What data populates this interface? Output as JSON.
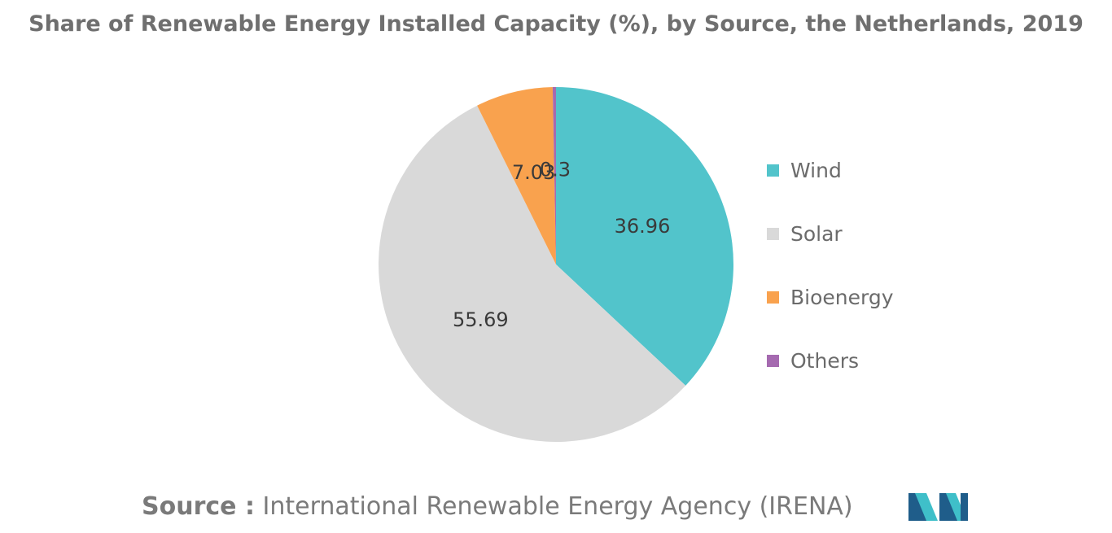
{
  "title": "Share of Renewable Energy Installed Capacity (%), by Source, the Netherlands, 2019",
  "source": {
    "label": "Source :",
    "text": "International Renewable Energy Agency (IRENA)"
  },
  "logo": {
    "icon": "mordor-intelligence-logo-icon",
    "colors": [
      "#1f5d8a",
      "#3fbfc9"
    ]
  },
  "chart_data": {
    "type": "pie",
    "title": "Share of Renewable Energy Installed Capacity (%), by Source, the Netherlands, 2019",
    "slices": [
      {
        "name": "Wind",
        "value": 36.96,
        "label": "36.96",
        "color": "#52c4cb"
      },
      {
        "name": "Solar",
        "value": 55.69,
        "label": "55.69",
        "color": "#d9d9d9"
      },
      {
        "name": "Bioenergy",
        "value": 7.03,
        "label": "7.03",
        "color": "#f9a24e"
      },
      {
        "name": "Others",
        "value": 0.3,
        "label": "0.3",
        "color": "#a56ab0"
      }
    ],
    "legend_position": "right"
  }
}
